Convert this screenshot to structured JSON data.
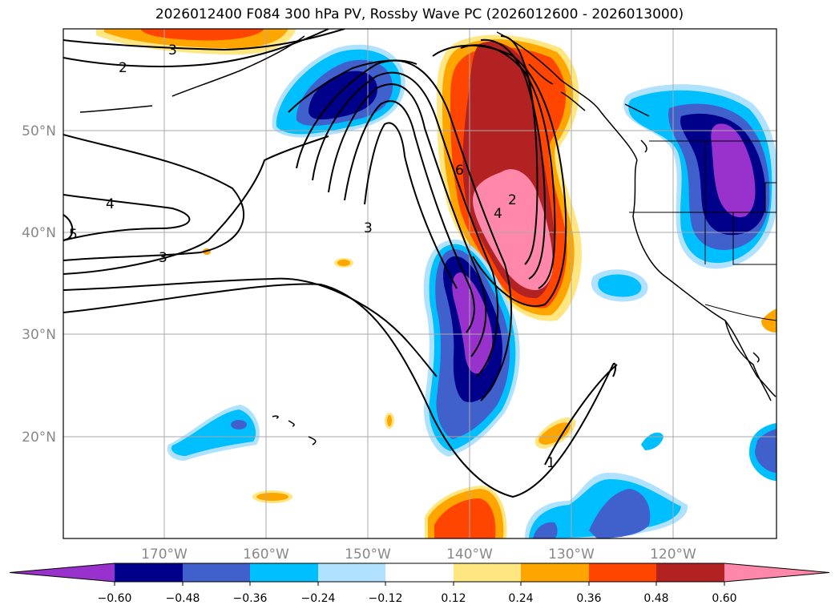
{
  "title": "2026012400 F084 300 hPa PV, Rossby Wave PC (2026012600 - 2026013000)",
  "map": {
    "lat_labels": [
      "50°N",
      "40°N",
      "30°N",
      "20°N"
    ],
    "lon_labels": [
      "170°W",
      "160°W",
      "150°W",
      "140°W",
      "130°W",
      "120°W"
    ],
    "contour_labels": [
      "3",
      "2",
      "4",
      "3",
      "3",
      "5",
      "6",
      "2",
      "4",
      "1"
    ]
  },
  "colorbar": {
    "ticks": [
      "−0.60",
      "−0.48",
      "−0.36",
      "−0.24",
      "−0.12",
      "0.12",
      "0.24",
      "0.36",
      "0.48",
      "0.60"
    ],
    "colors": [
      "#9932cc",
      "#00008b",
      "#4060cc",
      "#00bfff",
      "#b0e2ff",
      "#ffffff",
      "#ffe680",
      "#ffa500",
      "#ff4500",
      "#b22222",
      "#ff88aa"
    ]
  }
}
